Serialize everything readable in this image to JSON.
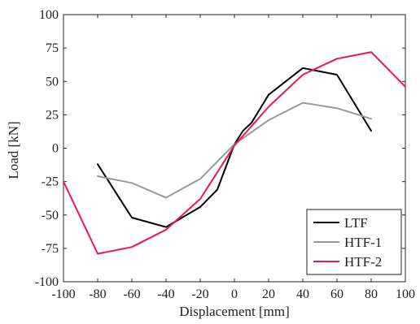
{
  "chart_data": {
    "type": "line",
    "xlabel": "Displacement [mm]",
    "ylabel": "Load [kN]",
    "xlim": [
      -100,
      100
    ],
    "ylim": [
      -100,
      100
    ],
    "xticks": [
      -100,
      -80,
      -60,
      -40,
      -20,
      0,
      20,
      40,
      60,
      80,
      100
    ],
    "yticks": [
      -100,
      -75,
      -50,
      -25,
      0,
      25,
      50,
      75,
      100
    ],
    "grid": false,
    "legend": "bottom-right",
    "series": [
      {
        "name": "LTF",
        "color": "#000000",
        "x": [
          -80,
          -60,
          -40,
          -20,
          -10,
          -5,
          0,
          5,
          10,
          20,
          40,
          60,
          80
        ],
        "y": [
          -12,
          -52,
          -59,
          -44,
          -31,
          -14,
          3,
          13,
          19,
          40,
          60,
          55,
          13
        ]
      },
      {
        "name": "HTF-1",
        "color": "#999999",
        "x": [
          -80,
          -60,
          -40,
          -20,
          0,
          20,
          40,
          60,
          80
        ],
        "y": [
          -21,
          -26,
          -37,
          -23,
          3,
          21,
          34,
          30,
          22
        ]
      },
      {
        "name": "HTF-2",
        "color": "#e8175d",
        "x": [
          -100,
          -80,
          -60,
          -40,
          -20,
          0,
          20,
          40,
          60,
          80,
          100
        ],
        "y": [
          -25,
          -79,
          -74,
          -61,
          -38,
          2,
          31,
          55,
          67,
          72,
          46
        ]
      }
    ]
  }
}
